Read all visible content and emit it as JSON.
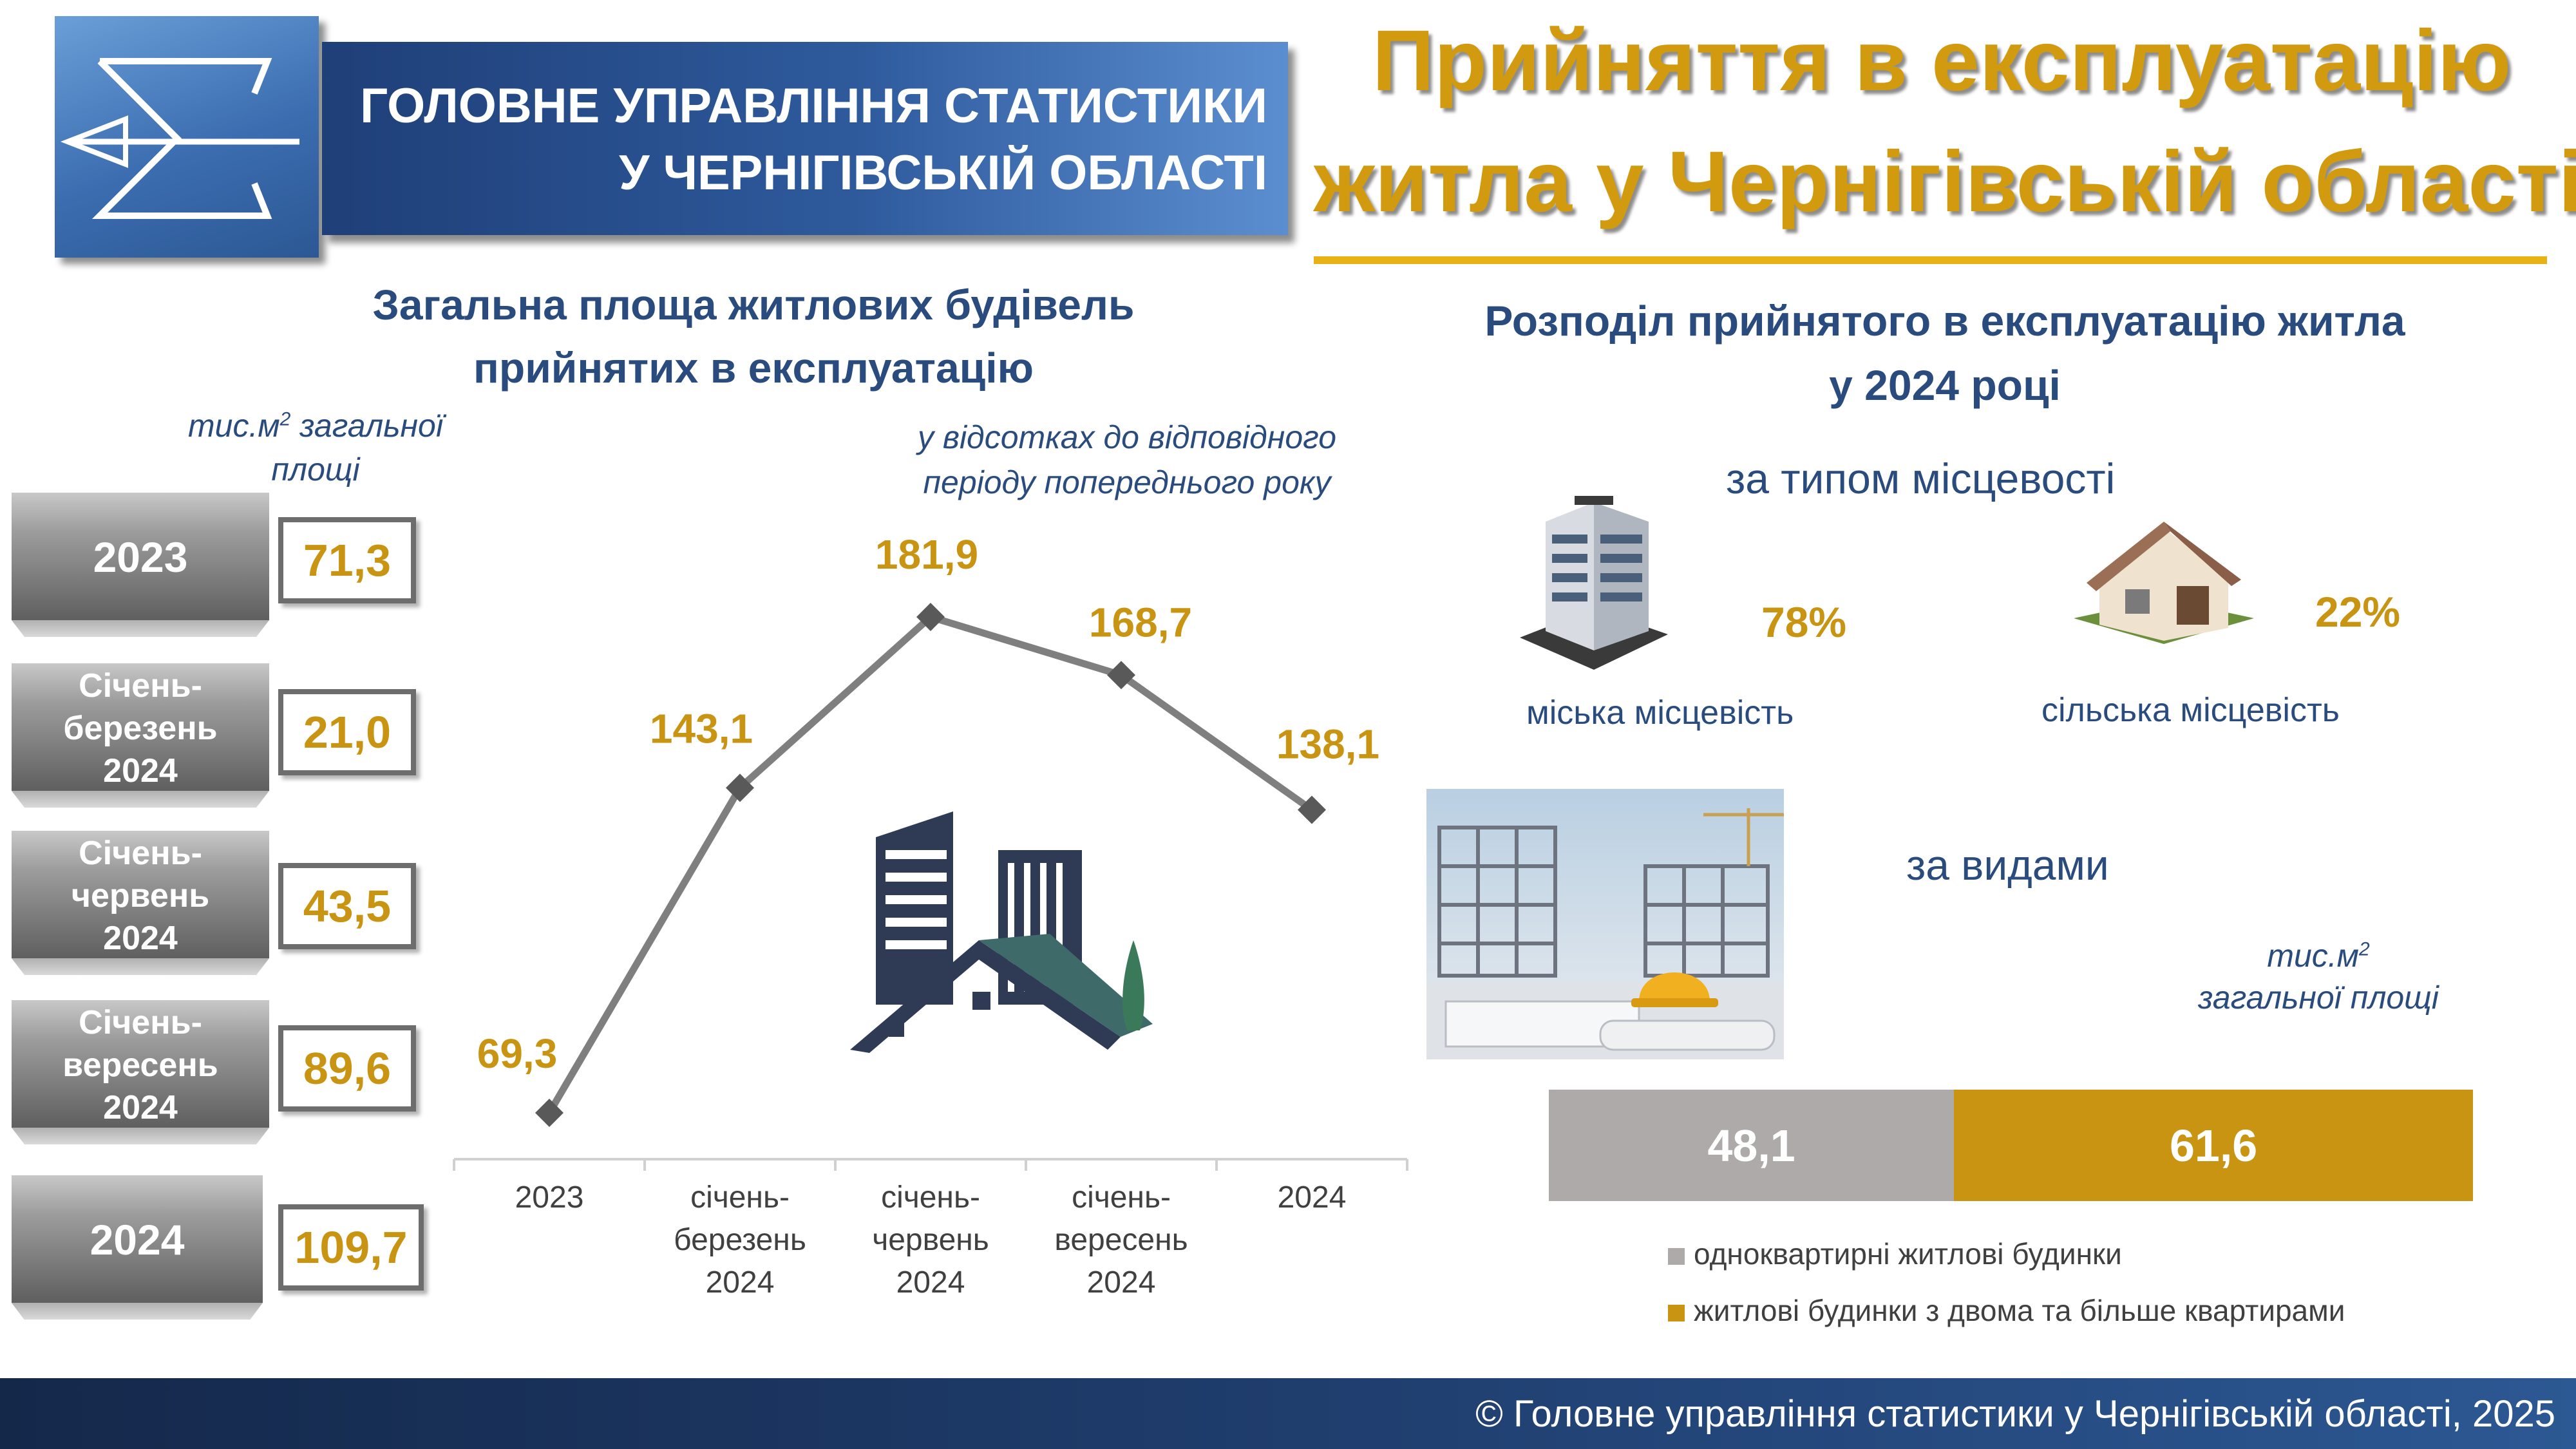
{
  "header": {
    "org_line1": "ГОЛОВНЕ УПРАВЛІННЯ СТАТИСТИКИ",
    "org_line2": "У ЧЕРНІГІВСЬКІЙ ОБЛАСТІ",
    "title_line1": "Прийняття в експлуатацію",
    "title_line2": "житла у Чернігівській області"
  },
  "left_section": {
    "title_line1": "Загальна площа житлових будівель",
    "title_line2": "прийнятих в експлуатацію",
    "unit_line1": "тис.м",
    "unit_sup": "2",
    "unit_line1_rest": " загальної",
    "unit_line2": "площі",
    "note_line1": "у відсотках до відповідного",
    "note_line2": "періоду попереднього року",
    "periods": [
      {
        "lines": [
          "2023"
        ],
        "value": "71,3"
      },
      {
        "lines": [
          "Січень-",
          "березень",
          "2024"
        ],
        "value": "21,0"
      },
      {
        "lines": [
          "Січень-",
          "червень",
          "2024"
        ],
        "value": "43,5"
      },
      {
        "lines": [
          "Січень-",
          "вересень",
          "2024"
        ],
        "value": "89,6"
      },
      {
        "lines": [
          "2024"
        ],
        "value": "109,7"
      }
    ]
  },
  "chart_data": {
    "type": "line",
    "categories": [
      [
        "2023"
      ],
      [
        "січень-",
        "березень",
        "2024"
      ],
      [
        "січень-",
        "червень",
        "2024"
      ],
      [
        "січень-",
        "вересень",
        "2024"
      ],
      [
        "2024"
      ]
    ],
    "values": [
      69.3,
      143.1,
      181.9,
      168.7,
      138.1
    ],
    "labels": [
      "69,3",
      "143,1",
      "181,9",
      "168,7",
      "138,1"
    ],
    "line_color": "#7f7f7f",
    "label_color": "#c89411",
    "grid": false,
    "title": "",
    "xlabel": "",
    "ylabel": ""
  },
  "right_section": {
    "title_line1": "Розподіл прийнятого в експлуатацію житла",
    "title_line2": "у 2024 році",
    "by_area_heading": "за типом місцевості",
    "urban_pct": "78%",
    "urban_label": "міська місцевість",
    "rural_pct": "22%",
    "rural_label": "сільська місцевість",
    "by_type_heading": "за видами",
    "unit_line1": "тис.м",
    "unit_sup": "2",
    "unit_line2": "загальної площі",
    "stack": [
      {
        "label": "одноквартирні житлові будинки",
        "value": 48.1,
        "display": "48,1",
        "color": "#aeaaaa"
      },
      {
        "label": "житлові будинки з двома та більше квартирами",
        "value": 61.6,
        "display": "61,6",
        "color": "#c89411"
      }
    ]
  },
  "footer": {
    "text": "© Головне управління статистики у Чернігівській області, 2025"
  },
  "colors": {
    "accent": "#c89411",
    "navy": "#2a4b7d",
    "banner": "#2e5a9c"
  }
}
